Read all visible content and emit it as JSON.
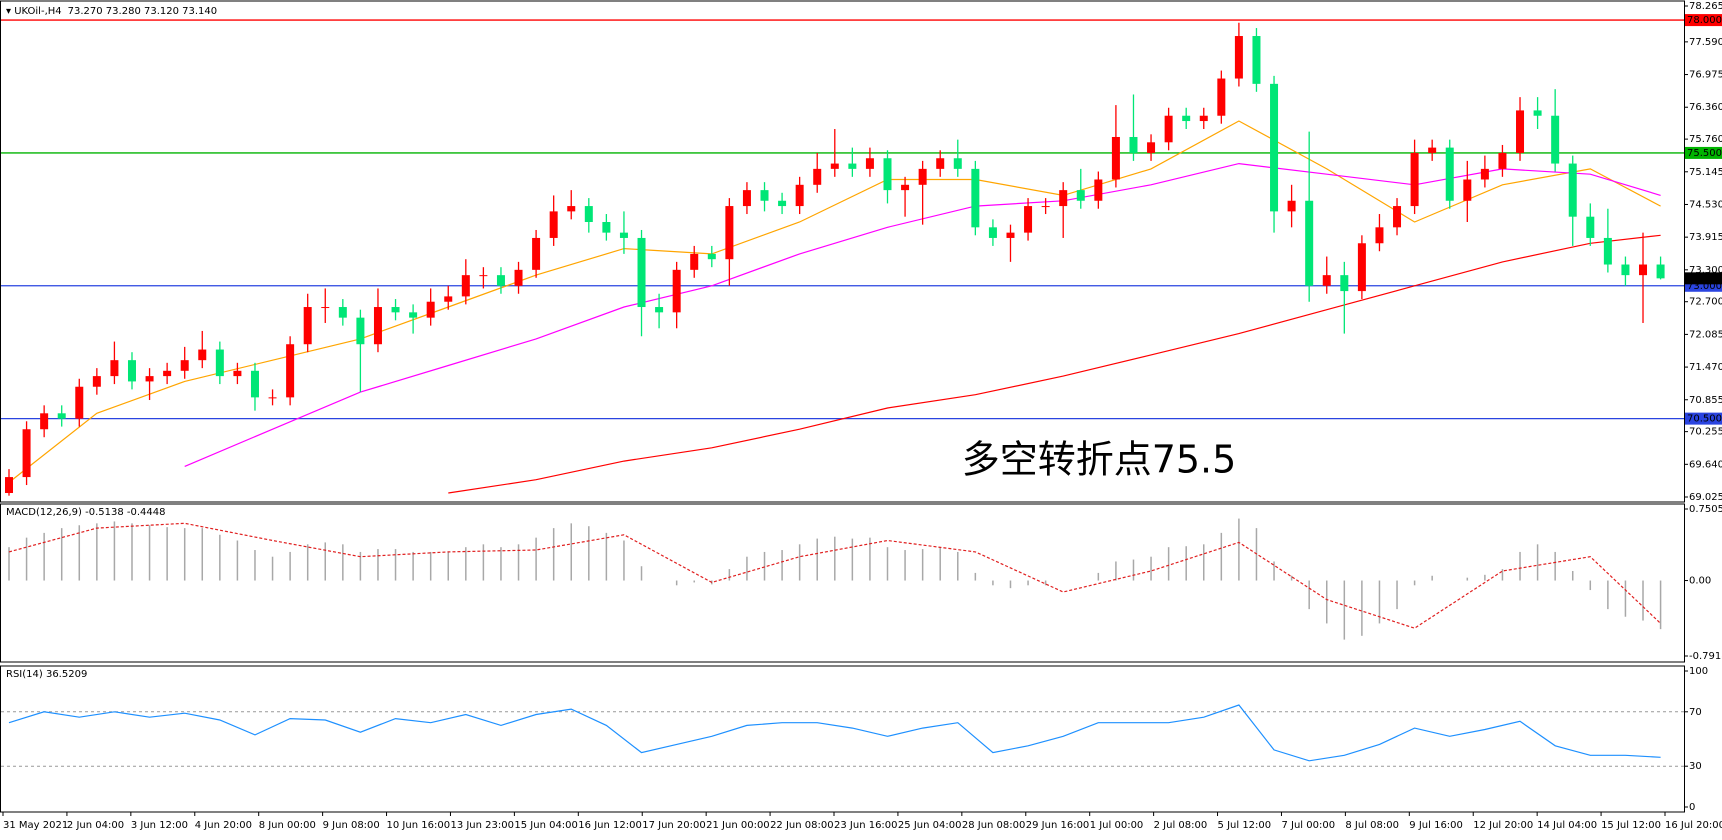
{
  "chart_data": [
    {
      "type": "candlestick",
      "title": "UKOil-,H4",
      "subtitle": "73.270 73.280 73.120 73.140",
      "ylim": [
        69.025,
        78.265
      ],
      "yticks": [
        78.265,
        {
          "value": 77.59,
          "label": "77.590"
        },
        76.975,
        {
          "value": 76.36,
          "label": "76.360"
        },
        {
          "value": 75.76,
          "label": "75.760"
        },
        75.145,
        {
          "value": 74.53,
          "label": "74.530"
        },
        73.915,
        {
          "value": 73.3,
          "label": "73.300"
        },
        {
          "value": 72.7,
          "label": "72.700"
        },
        72.085,
        {
          "value": 71.47,
          "label": "71.470"
        },
        70.855,
        70.255,
        {
          "value": 69.64,
          "label": "69.640"
        },
        69.025
      ],
      "up_color": "#ff0000",
      "down_color": "#00e676",
      "open": [
        69.1,
        69.4,
        70.3,
        70.6,
        70.5,
        71.1,
        71.3,
        71.6,
        71.2,
        71.3,
        71.4,
        71.6,
        71.8,
        71.3,
        71.4,
        70.9,
        70.9,
        71.9,
        72.6,
        72.6,
        72.4,
        71.9,
        72.6,
        72.5,
        72.4,
        72.7,
        72.8,
        73.2,
        73.2,
        73.0,
        73.3,
        73.9,
        74.4,
        74.5,
        74.2,
        74.0,
        73.9,
        72.6,
        72.5,
        73.3,
        73.6,
        73.5,
        74.5,
        74.8,
        74.6,
        74.5,
        74.9,
        75.2,
        75.3,
        75.2,
        75.4,
        74.8,
        74.9,
        75.2,
        75.4,
        75.2,
        74.1,
        73.9,
        74.0,
        74.5,
        74.5,
        74.8,
        74.6,
        75.0,
        75.8,
        75.5,
        75.7,
        76.2,
        76.1,
        76.2,
        76.9,
        77.7,
        76.8,
        74.4,
        74.6,
        73.0,
        73.2,
        72.9,
        73.8,
        74.1,
        74.5,
        75.5,
        75.6,
        74.6,
        75.0,
        75.2,
        75.5,
        76.3,
        76.2,
        75.3,
        74.3,
        73.9,
        73.4,
        73.2,
        73.4
      ],
      "high": [
        69.55,
        70.45,
        70.75,
        70.75,
        71.25,
        71.45,
        71.95,
        71.75,
        71.45,
        71.55,
        71.85,
        72.15,
        71.95,
        71.55,
        71.55,
        71.05,
        72.05,
        72.85,
        72.95,
        72.75,
        72.55,
        72.95,
        72.75,
        72.65,
        72.95,
        73.0,
        73.5,
        73.35,
        73.35,
        73.45,
        74.05,
        74.7,
        74.8,
        74.65,
        74.35,
        74.4,
        74.05,
        72.85,
        73.45,
        73.75,
        73.75,
        74.65,
        74.95,
        74.95,
        74.75,
        75.05,
        75.5,
        75.95,
        75.6,
        75.6,
        75.55,
        75.05,
        75.35,
        75.55,
        75.75,
        75.35,
        74.25,
        74.15,
        74.65,
        74.65,
        74.95,
        75.2,
        75.15,
        76.4,
        76.6,
        75.85,
        76.35,
        76.35,
        76.35,
        77.05,
        77.95,
        77.85,
        76.95,
        74.9,
        75.9,
        73.55,
        73.45,
        73.95,
        74.35,
        74.65,
        75.75,
        75.75,
        75.75,
        75.35,
        75.45,
        75.65,
        76.55,
        76.55,
        76.7,
        75.45,
        74.55,
        74.45,
        73.55,
        74.0,
        73.55
      ],
      "low": [
        69.05,
        69.25,
        70.15,
        70.35,
        70.35,
        70.95,
        71.15,
        71.05,
        70.85,
        71.15,
        71.25,
        71.45,
        71.15,
        71.15,
        70.65,
        70.75,
        70.75,
        71.75,
        72.3,
        72.25,
        71.0,
        71.75,
        72.35,
        72.1,
        72.25,
        72.55,
        72.65,
        72.95,
        72.85,
        72.85,
        73.15,
        73.75,
        74.25,
        74.0,
        73.85,
        73.6,
        72.05,
        72.2,
        72.2,
        73.15,
        73.35,
        73.0,
        74.35,
        74.4,
        74.35,
        74.35,
        74.75,
        75.05,
        75.05,
        75.05,
        74.55,
        74.3,
        74.15,
        75.05,
        75.05,
        73.95,
        73.75,
        73.45,
        73.85,
        74.35,
        73.9,
        74.45,
        74.45,
        74.85,
        75.35,
        75.35,
        75.55,
        75.95,
        75.95,
        76.05,
        76.75,
        76.65,
        74.0,
        74.1,
        72.7,
        72.85,
        72.1,
        72.75,
        73.65,
        73.95,
        74.35,
        75.35,
        74.45,
        74.2,
        74.85,
        75.05,
        75.35,
        75.95,
        75.15,
        73.75,
        73.75,
        73.25,
        73.0,
        72.3,
        73.12
      ],
      "close": [
        69.4,
        70.3,
        70.6,
        70.5,
        71.1,
        71.3,
        71.6,
        71.2,
        71.3,
        71.4,
        71.6,
        71.8,
        71.3,
        71.4,
        70.9,
        70.9,
        71.9,
        72.6,
        72.6,
        72.4,
        71.9,
        72.6,
        72.5,
        72.4,
        72.7,
        72.8,
        73.2,
        73.2,
        73.0,
        73.3,
        73.9,
        74.4,
        74.5,
        74.2,
        74.0,
        73.9,
        72.6,
        72.5,
        73.3,
        73.6,
        73.5,
        74.5,
        74.8,
        74.6,
        74.5,
        74.9,
        75.2,
        75.3,
        75.2,
        75.4,
        74.8,
        74.9,
        75.2,
        75.4,
        75.2,
        74.1,
        73.9,
        74.0,
        74.5,
        74.5,
        74.8,
        74.6,
        75.0,
        75.8,
        75.5,
        75.7,
        76.2,
        76.1,
        76.2,
        76.9,
        77.7,
        76.8,
        74.4,
        74.6,
        73.0,
        73.2,
        72.9,
        73.8,
        74.1,
        74.5,
        75.5,
        75.6,
        74.6,
        75.0,
        75.2,
        75.5,
        76.3,
        76.2,
        75.3,
        74.3,
        73.9,
        73.4,
        73.2,
        73.4,
        73.14
      ],
      "lines": [
        {
          "color": "#ffa500",
          "x": [
            0,
            5,
            10,
            15,
            20,
            25,
            30,
            35,
            40,
            45,
            50,
            55,
            60,
            65,
            70,
            75,
            80,
            85,
            90,
            94
          ],
          "values": [
            69.3,
            70.6,
            71.2,
            71.6,
            72.0,
            72.6,
            73.2,
            73.7,
            73.6,
            74.2,
            75.0,
            75.0,
            74.7,
            75.2,
            76.1,
            75.2,
            74.2,
            74.9,
            75.2,
            74.5
          ]
        },
        {
          "color": "#ff00ff",
          "x": [
            0,
            5,
            10,
            15,
            20,
            25,
            30,
            35,
            40,
            45,
            50,
            55,
            60,
            65,
            70,
            75,
            80,
            85,
            90,
            94
          ],
          "values": [
            null,
            null,
            69.6,
            70.3,
            71.0,
            71.5,
            72.0,
            72.6,
            73.0,
            73.6,
            74.1,
            74.5,
            74.6,
            74.9,
            75.3,
            75.1,
            74.9,
            75.2,
            75.1,
            74.7
          ]
        },
        {
          "color": "#ff0000",
          "x": [
            25,
            30,
            35,
            40,
            45,
            50,
            55,
            60,
            65,
            70,
            75,
            80,
            85,
            90,
            94
          ],
          "values": [
            69.1,
            69.35,
            69.7,
            69.95,
            70.3,
            70.7,
            70.95,
            71.3,
            71.7,
            72.1,
            72.55,
            73.0,
            73.45,
            73.8,
            73.95
          ]
        }
      ],
      "hlines": [
        {
          "value": 78,
          "label": "78.000",
          "color": "#ff0000"
        },
        {
          "value": 75.5,
          "label": "75.500",
          "color": "#00b400"
        },
        {
          "value": 73,
          "label": "73.000",
          "color": "#2a44e0"
        },
        {
          "value": 70.5,
          "label": "70.500",
          "color": "#2a44e0"
        }
      ],
      "last": {
        "value": 73.14,
        "label": "73.140",
        "color": "#000000"
      },
      "annotation": "多空转折点75.5",
      "annotation_color": "#ff1a1a",
      "xtick_labels": [
        "31 May 2021",
        "2 Jun 04:00",
        "3 Jun 12:00",
        "4 Jun 20:00",
        "8 Jun 00:00",
        "9 Jun 08:00",
        "10 Jun 16:00",
        "13 Jun 23:00",
        "15 Jun 04:00",
        "16 Jun 12:00",
        "17 Jun 20:00",
        "21 Jun 00:00",
        "22 Jun 08:00",
        "23 Jun 16:00",
        "25 Jun 04:00",
        "28 Jun 08:00",
        "29 Jun 16:00",
        "1 Jul 00:00",
        "2 Jul 08:00",
        "5 Jul 12:00",
        "7 Jul 00:00",
        "8 Jul 08:00",
        "9 Jul 16:00",
        "12 Jul 20:00",
        "14 Jul 04:00",
        "15 Jul 12:00",
        "16 Jul 20:00"
      ]
    },
    {
      "type": "macd",
      "title": "MACD(12,26,9) -0.5138 -0.4448",
      "ylim": [
        -0.7918,
        0.7505
      ],
      "yticks": [
        0.7505,
        {
          "value": 0,
          "label": "0.00"
        },
        -0.7918
      ],
      "hist_color": "#a8a8a8",
      "histogram": [
        0.35,
        0.45,
        0.5,
        0.55,
        0.58,
        0.6,
        0.62,
        0.6,
        0.58,
        0.56,
        0.55,
        0.55,
        0.48,
        0.42,
        0.32,
        0.25,
        0.3,
        0.38,
        0.4,
        0.38,
        0.3,
        0.33,
        0.33,
        0.3,
        0.3,
        0.3,
        0.35,
        0.38,
        0.35,
        0.38,
        0.45,
        0.55,
        0.6,
        0.57,
        0.5,
        0.42,
        0.15,
        0.0,
        -0.05,
        -0.02,
        -0.04,
        0.12,
        0.25,
        0.3,
        0.32,
        0.38,
        0.44,
        0.46,
        0.44,
        0.45,
        0.35,
        0.32,
        0.33,
        0.35,
        0.3,
        0.08,
        -0.05,
        -0.08,
        -0.05,
        -0.05,
        0.0,
        0.0,
        0.08,
        0.2,
        0.22,
        0.25,
        0.35,
        0.36,
        0.38,
        0.5,
        0.65,
        0.55,
        0.2,
        0.05,
        -0.3,
        -0.45,
        -0.62,
        -0.58,
        -0.45,
        -0.3,
        -0.05,
        0.05,
        0.0,
        0.03,
        0.06,
        0.12,
        0.3,
        0.38,
        0.3,
        0.1,
        -0.1,
        -0.3,
        -0.38,
        -0.42,
        -0.51
      ],
      "signal": {
        "color": "#e02020",
        "x": [
          0,
          5,
          10,
          15,
          20,
          25,
          30,
          35,
          40,
          45,
          50,
          55,
          60,
          65,
          70,
          75,
          80,
          85,
          90,
          94
        ],
        "values": [
          0.3,
          0.55,
          0.6,
          0.42,
          0.25,
          0.3,
          0.32,
          0.48,
          -0.02,
          0.25,
          0.42,
          0.3,
          -0.12,
          0.1,
          0.4,
          -0.2,
          -0.5,
          0.1,
          0.25,
          -0.45
        ]
      }
    },
    {
      "type": "rsi",
      "title": "RSI(14) 36.5209",
      "ylim": [
        0,
        100
      ],
      "yticks": [
        100,
        70,
        30,
        0
      ],
      "grid_levels": [
        70,
        30
      ],
      "line": {
        "color": "#1e90ff",
        "x": [
          0,
          2,
          4,
          6,
          8,
          10,
          12,
          14,
          16,
          18,
          20,
          22,
          24,
          26,
          28,
          30,
          32,
          34,
          36,
          38,
          40,
          42,
          44,
          46,
          48,
          50,
          52,
          54,
          56,
          58,
          60,
          62,
          64,
          66,
          68,
          70,
          72,
          74,
          76,
          78,
          80,
          82,
          84,
          86,
          88,
          90,
          92,
          94
        ],
        "values": [
          62,
          70,
          66,
          70,
          66,
          69,
          64,
          53,
          65,
          64,
          55,
          65,
          62,
          68,
          60,
          68,
          72,
          60,
          40,
          46,
          52,
          60,
          62,
          62,
          58,
          52,
          58,
          62,
          40,
          45,
          52,
          62,
          62,
          62,
          66,
          75,
          42,
          34,
          38,
          46,
          58,
          52,
          57,
          63,
          45,
          38,
          38,
          36.52
        ]
      }
    }
  ]
}
